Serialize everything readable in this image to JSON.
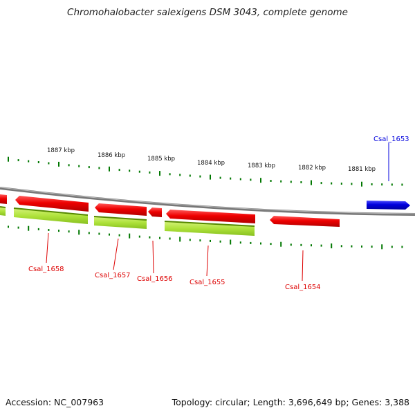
{
  "title": "Chromohalobacter salexigens DSM 3043, complete genome",
  "accession": "Accession: NC_007963",
  "topology": "Topology: circular; Length: 3,696,649 bp; Genes: 3,388",
  "colors": {
    "forward_gene": "#0000dd",
    "reverse_gene": "#ee0000",
    "reverse_cds": "#99dd22",
    "tick": "#007700",
    "backbone": "#777777"
  },
  "scale_labels": [
    "1887 kbp",
    "1886 kbp",
    "1885 kbp",
    "1884 kbp",
    "1883 kbp",
    "1882 kbp",
    "1881 kbp"
  ],
  "genes": [
    {
      "name": "Csal_1653",
      "strand": "+"
    },
    {
      "name": "Csal_1654",
      "strand": "-"
    },
    {
      "name": "Csal_1655",
      "strand": "-"
    },
    {
      "name": "Csal_1656",
      "strand": "-"
    },
    {
      "name": "Csal_1657",
      "strand": "-"
    },
    {
      "name": "Csal_1658",
      "strand": "-"
    }
  ]
}
